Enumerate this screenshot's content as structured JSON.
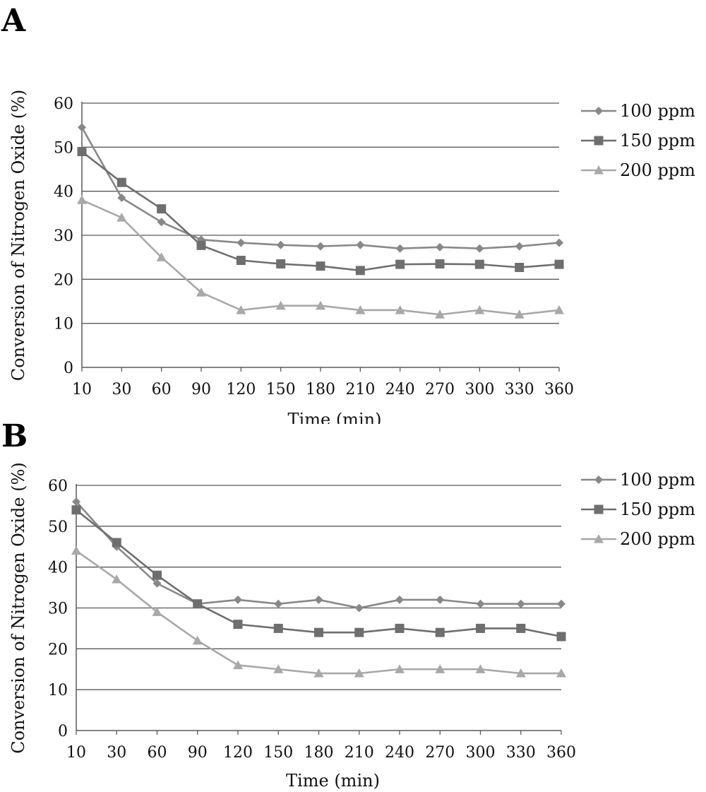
{
  "panels": [
    {
      "letter": "A",
      "chart_data": {
        "type": "line",
        "categories": [
          "10",
          "30",
          "60",
          "90",
          "120",
          "150",
          "180",
          "210",
          "240",
          "270",
          "300",
          "330",
          "360"
        ],
        "series": [
          {
            "name": "100 ppm",
            "values": [
              54.5,
              38.5,
              33,
              29,
              28.3,
              27.8,
              27.5,
              27.8,
              27,
              27.3,
              27,
              27.5,
              28.3
            ],
            "color": "#888888",
            "marker": "diamond"
          },
          {
            "name": "150 ppm",
            "values": [
              49,
              42,
              36,
              27.7,
              24.3,
              23.5,
              23,
              22,
              23.4,
              23.5,
              23.4,
              22.7,
              23.4
            ],
            "color": "#6e6e6e",
            "marker": "square"
          },
          {
            "name": "200 ppm",
            "values": [
              38,
              34,
              25,
              17,
              13,
              14,
              14,
              13,
              13,
              12,
              13,
              12,
              13
            ],
            "color": "#a8a8a8",
            "marker": "triangle"
          }
        ],
        "yticks": [
          "0",
          "10",
          "20",
          "30",
          "40",
          "50",
          "60"
        ],
        "ylim": [
          0,
          60
        ],
        "xlabel": "Time (min)",
        "ylabel": "Conversion of Nitrogen Oxide (%)",
        "grid": true,
        "legend": "right"
      }
    },
    {
      "letter": "B",
      "chart_data": {
        "type": "line",
        "categories": [
          "10",
          "30",
          "60",
          "90",
          "120",
          "150",
          "180",
          "210",
          "240",
          "270",
          "300",
          "330",
          "360"
        ],
        "series": [
          {
            "name": "100 ppm",
            "values": [
              56,
              45,
              36,
              31,
              32,
              31,
              32,
              30,
              32,
              32,
              31,
              31,
              31
            ],
            "color": "#888888",
            "marker": "diamond"
          },
          {
            "name": "150 ppm",
            "values": [
              54,
              46,
              38,
              31,
              26,
              25,
              24,
              24,
              25,
              24,
              25,
              25,
              23
            ],
            "color": "#6e6e6e",
            "marker": "square"
          },
          {
            "name": "200 ppm",
            "values": [
              44,
              37,
              29,
              22,
              16,
              15,
              14,
              14,
              15,
              15,
              15,
              14,
              14
            ],
            "color": "#a8a8a8",
            "marker": "triangle"
          }
        ],
        "yticks": [
          "0",
          "10",
          "20",
          "30",
          "40",
          "50",
          "60"
        ],
        "ylim": [
          0,
          60
        ],
        "xlabel": "Time (min)",
        "ylabel": "Conversion of Nitrogen Oxide (%)",
        "grid": true,
        "legend": "right"
      }
    }
  ]
}
